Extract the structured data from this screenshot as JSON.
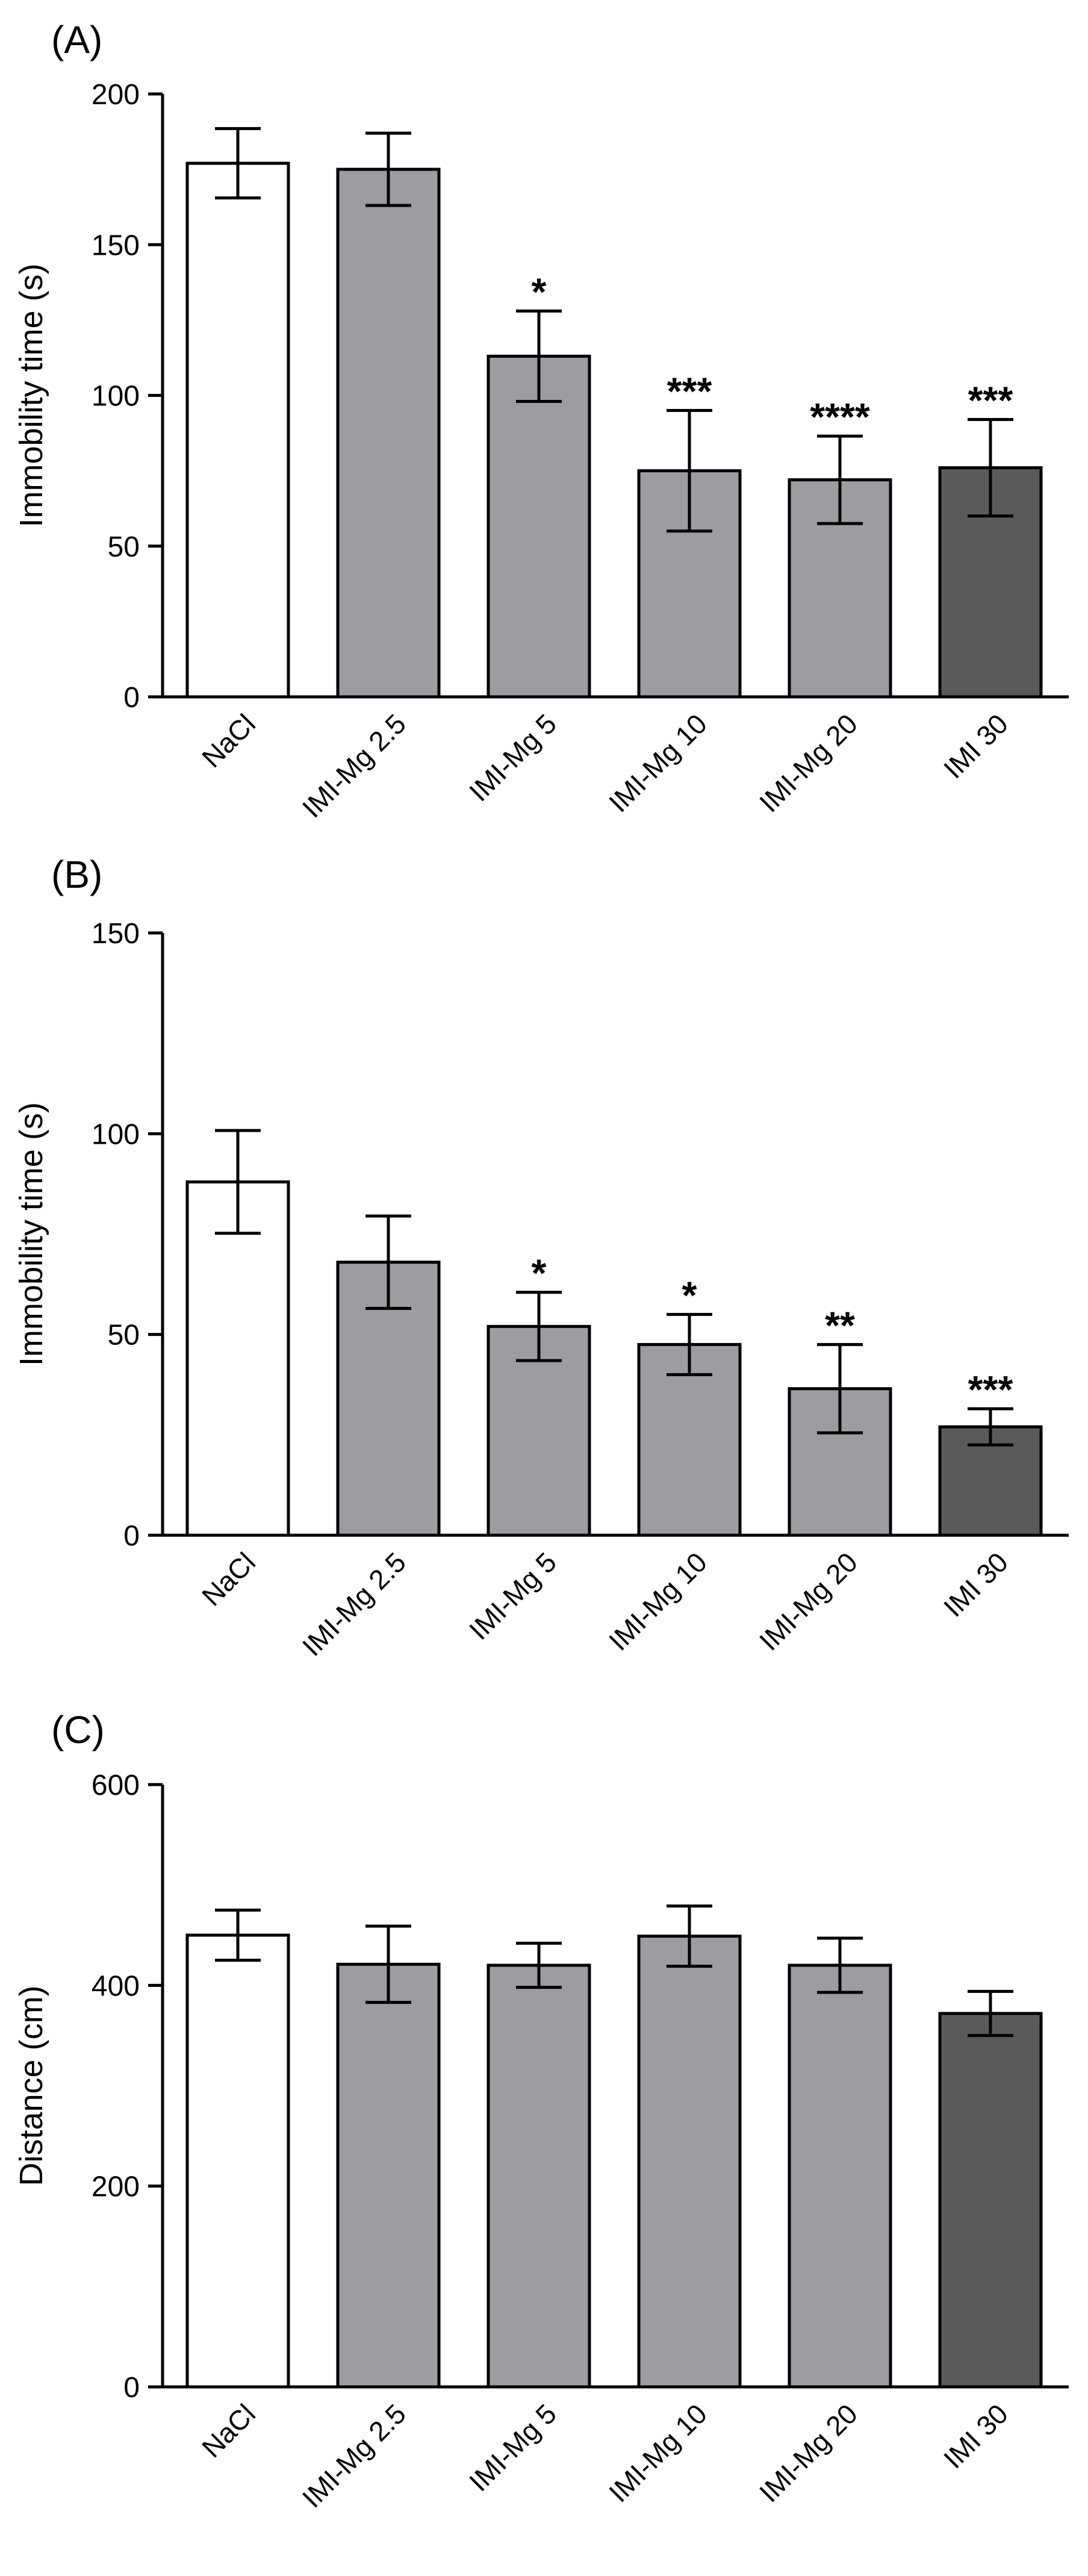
{
  "chart_data": [
    {
      "type": "bar",
      "panel_label": "(A)",
      "ylabel": "Immobility time (s)",
      "xlabel": "",
      "ylim": [
        0,
        200
      ],
      "yticks": [
        0,
        50,
        100,
        150,
        200
      ],
      "yticks_text": [
        "0",
        "50",
        "100",
        "150",
        "200"
      ],
      "categories": [
        "NaCl",
        "IMI-Mg 2.5",
        "IMI-Mg 5",
        "IMI-Mg 10",
        "IMI-Mg 20",
        "IMI 30"
      ],
      "values": [
        177,
        175,
        113,
        75,
        72,
        76
      ],
      "errors": [
        11.5,
        12,
        15,
        20,
        14.5,
        16
      ],
      "significance": [
        "",
        "",
        "*",
        "***",
        "****",
        "***"
      ],
      "bar_colors": [
        "#ffffff",
        "#9c9ca1",
        "#9c9ca1",
        "#9c9ca1",
        "#9c9ca1",
        "#5a5a5a"
      ]
    },
    {
      "type": "bar",
      "panel_label": "(B)",
      "ylabel": "Immobility time (s)",
      "xlabel": "",
      "ylim": [
        0,
        150
      ],
      "yticks": [
        0,
        50,
        100,
        150
      ],
      "yticks_text": [
        "0",
        "50",
        "100",
        "150"
      ],
      "categories": [
        "NaCl",
        "IMI-Mg 2.5",
        "IMI-Mg 5",
        "IMI-Mg 10",
        "IMI-Mg 20",
        "IMI 30"
      ],
      "values": [
        88,
        68,
        52,
        47.5,
        36.5,
        27
      ],
      "errors": [
        12.8,
        11.5,
        8.5,
        7.5,
        11,
        4.5
      ],
      "significance": [
        "",
        "",
        "*",
        "*",
        "**",
        "***"
      ],
      "bar_colors": [
        "#ffffff",
        "#9c9ca1",
        "#9c9ca1",
        "#9c9ca1",
        "#9c9ca1",
        "#5a5a5a"
      ]
    },
    {
      "type": "bar",
      "panel_label": "(C)",
      "ylabel": "Distance (cm)",
      "xlabel": "",
      "ylim": [
        0,
        600
      ],
      "yticks": [
        0,
        200,
        400,
        600
      ],
      "yticks_text": [
        "0",
        "200",
        "400",
        "600"
      ],
      "categories": [
        "NaCl",
        "IMI-Mg 2.5",
        "IMI-Mg 5",
        "IMI-Mg 10",
        "IMI-Mg 20",
        "IMI 30"
      ],
      "values": [
        450,
        421,
        420,
        449,
        420,
        372
      ],
      "errors": [
        25,
        38,
        22,
        30,
        27,
        22
      ],
      "significance": [
        "",
        "",
        "",
        "",
        "",
        ""
      ],
      "bar_colors": [
        "#ffffff",
        "#9c9ca1",
        "#9c9ca1",
        "#9c9ca1",
        "#9c9ca1",
        "#5a5a5a"
      ]
    }
  ]
}
